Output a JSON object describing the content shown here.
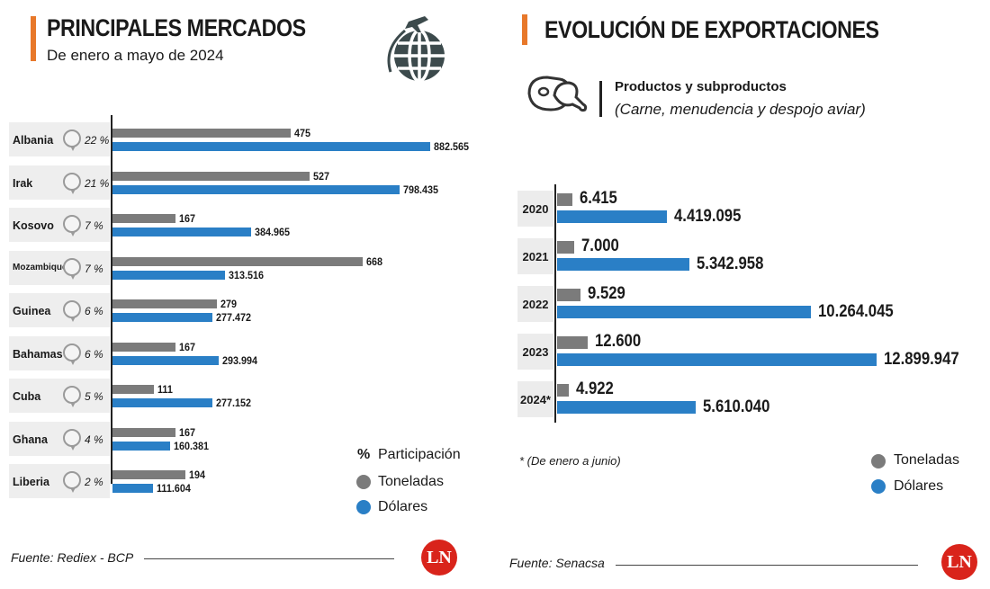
{
  "left": {
    "title": "PRINCIPALES MERCADOS",
    "subtitle": "De enero a mayo de 2024",
    "legend": {
      "participacion_symbol": "%",
      "participacion": "Participación",
      "toneladas": "Toneladas",
      "dolares": "Dólares"
    },
    "source": "Fuente: Rediex - BCP",
    "logo": "LN"
  },
  "right": {
    "title": "EVOLUCIÓN DE EXPORTACIONES",
    "product_title": "Productos y subproductos",
    "product_subtitle": "(Carne, menudencia y despojo aviar)",
    "footnote": "* (De enero a junio)",
    "legend": {
      "toneladas": "Toneladas",
      "dolares": "Dólares"
    },
    "source": "Fuente: Senacsa",
    "logo": "LN"
  },
  "colors": {
    "accent": "#e8782a",
    "toneladas": "#7b7b7b",
    "dolares": "#2a7fc6",
    "logo": "#d9241b"
  },
  "chart_data": [
    {
      "type": "bar",
      "title": "PRINCIPALES MERCADOS",
      "orientation": "horizontal",
      "categories": [
        "Albania",
        "Irak",
        "Kosovo",
        "Mozambique",
        "Guinea",
        "Bahamas",
        "Cuba",
        "Ghana",
        "Liberia"
      ],
      "participacion": [
        "22 %",
        "21 %",
        "7 %",
        "7 %",
        "6 %",
        "6 %",
        "5 %",
        "4 %",
        "2 %"
      ],
      "series": [
        {
          "name": "Toneladas",
          "values": [
            475,
            527,
            167,
            668,
            279,
            167,
            111,
            167,
            194
          ],
          "labels": [
            "475",
            "527",
            "167",
            "668",
            "279",
            "167",
            "111",
            "167",
            "194"
          ]
        },
        {
          "name": "Dólares",
          "values": [
            882565,
            798435,
            384965,
            313516,
            277472,
            293994,
            277152,
            160381,
            111604
          ],
          "labels": [
            "882.565",
            "798.435",
            "384.965",
            "313.516",
            "277.472",
            "293.994",
            "277.152",
            "160.381",
            "111.604"
          ]
        }
      ]
    },
    {
      "type": "bar",
      "title": "EVOLUCIÓN DE EXPORTACIONES",
      "orientation": "horizontal",
      "categories": [
        "2020",
        "2021",
        "2022",
        "2023",
        "2024*"
      ],
      "series": [
        {
          "name": "Toneladas",
          "values": [
            6415,
            7000,
            9529,
            12600,
            4922
          ],
          "labels": [
            "6.415",
            "7.000",
            "9.529",
            "12.600",
            "4.922"
          ]
        },
        {
          "name": "Dólares",
          "values": [
            4419095,
            5342958,
            10264045,
            12899947,
            5610040
          ],
          "labels": [
            "4.419.095",
            "5.342.958",
            "10.264.045",
            "12.899.947",
            "5.610.040"
          ]
        }
      ]
    }
  ]
}
